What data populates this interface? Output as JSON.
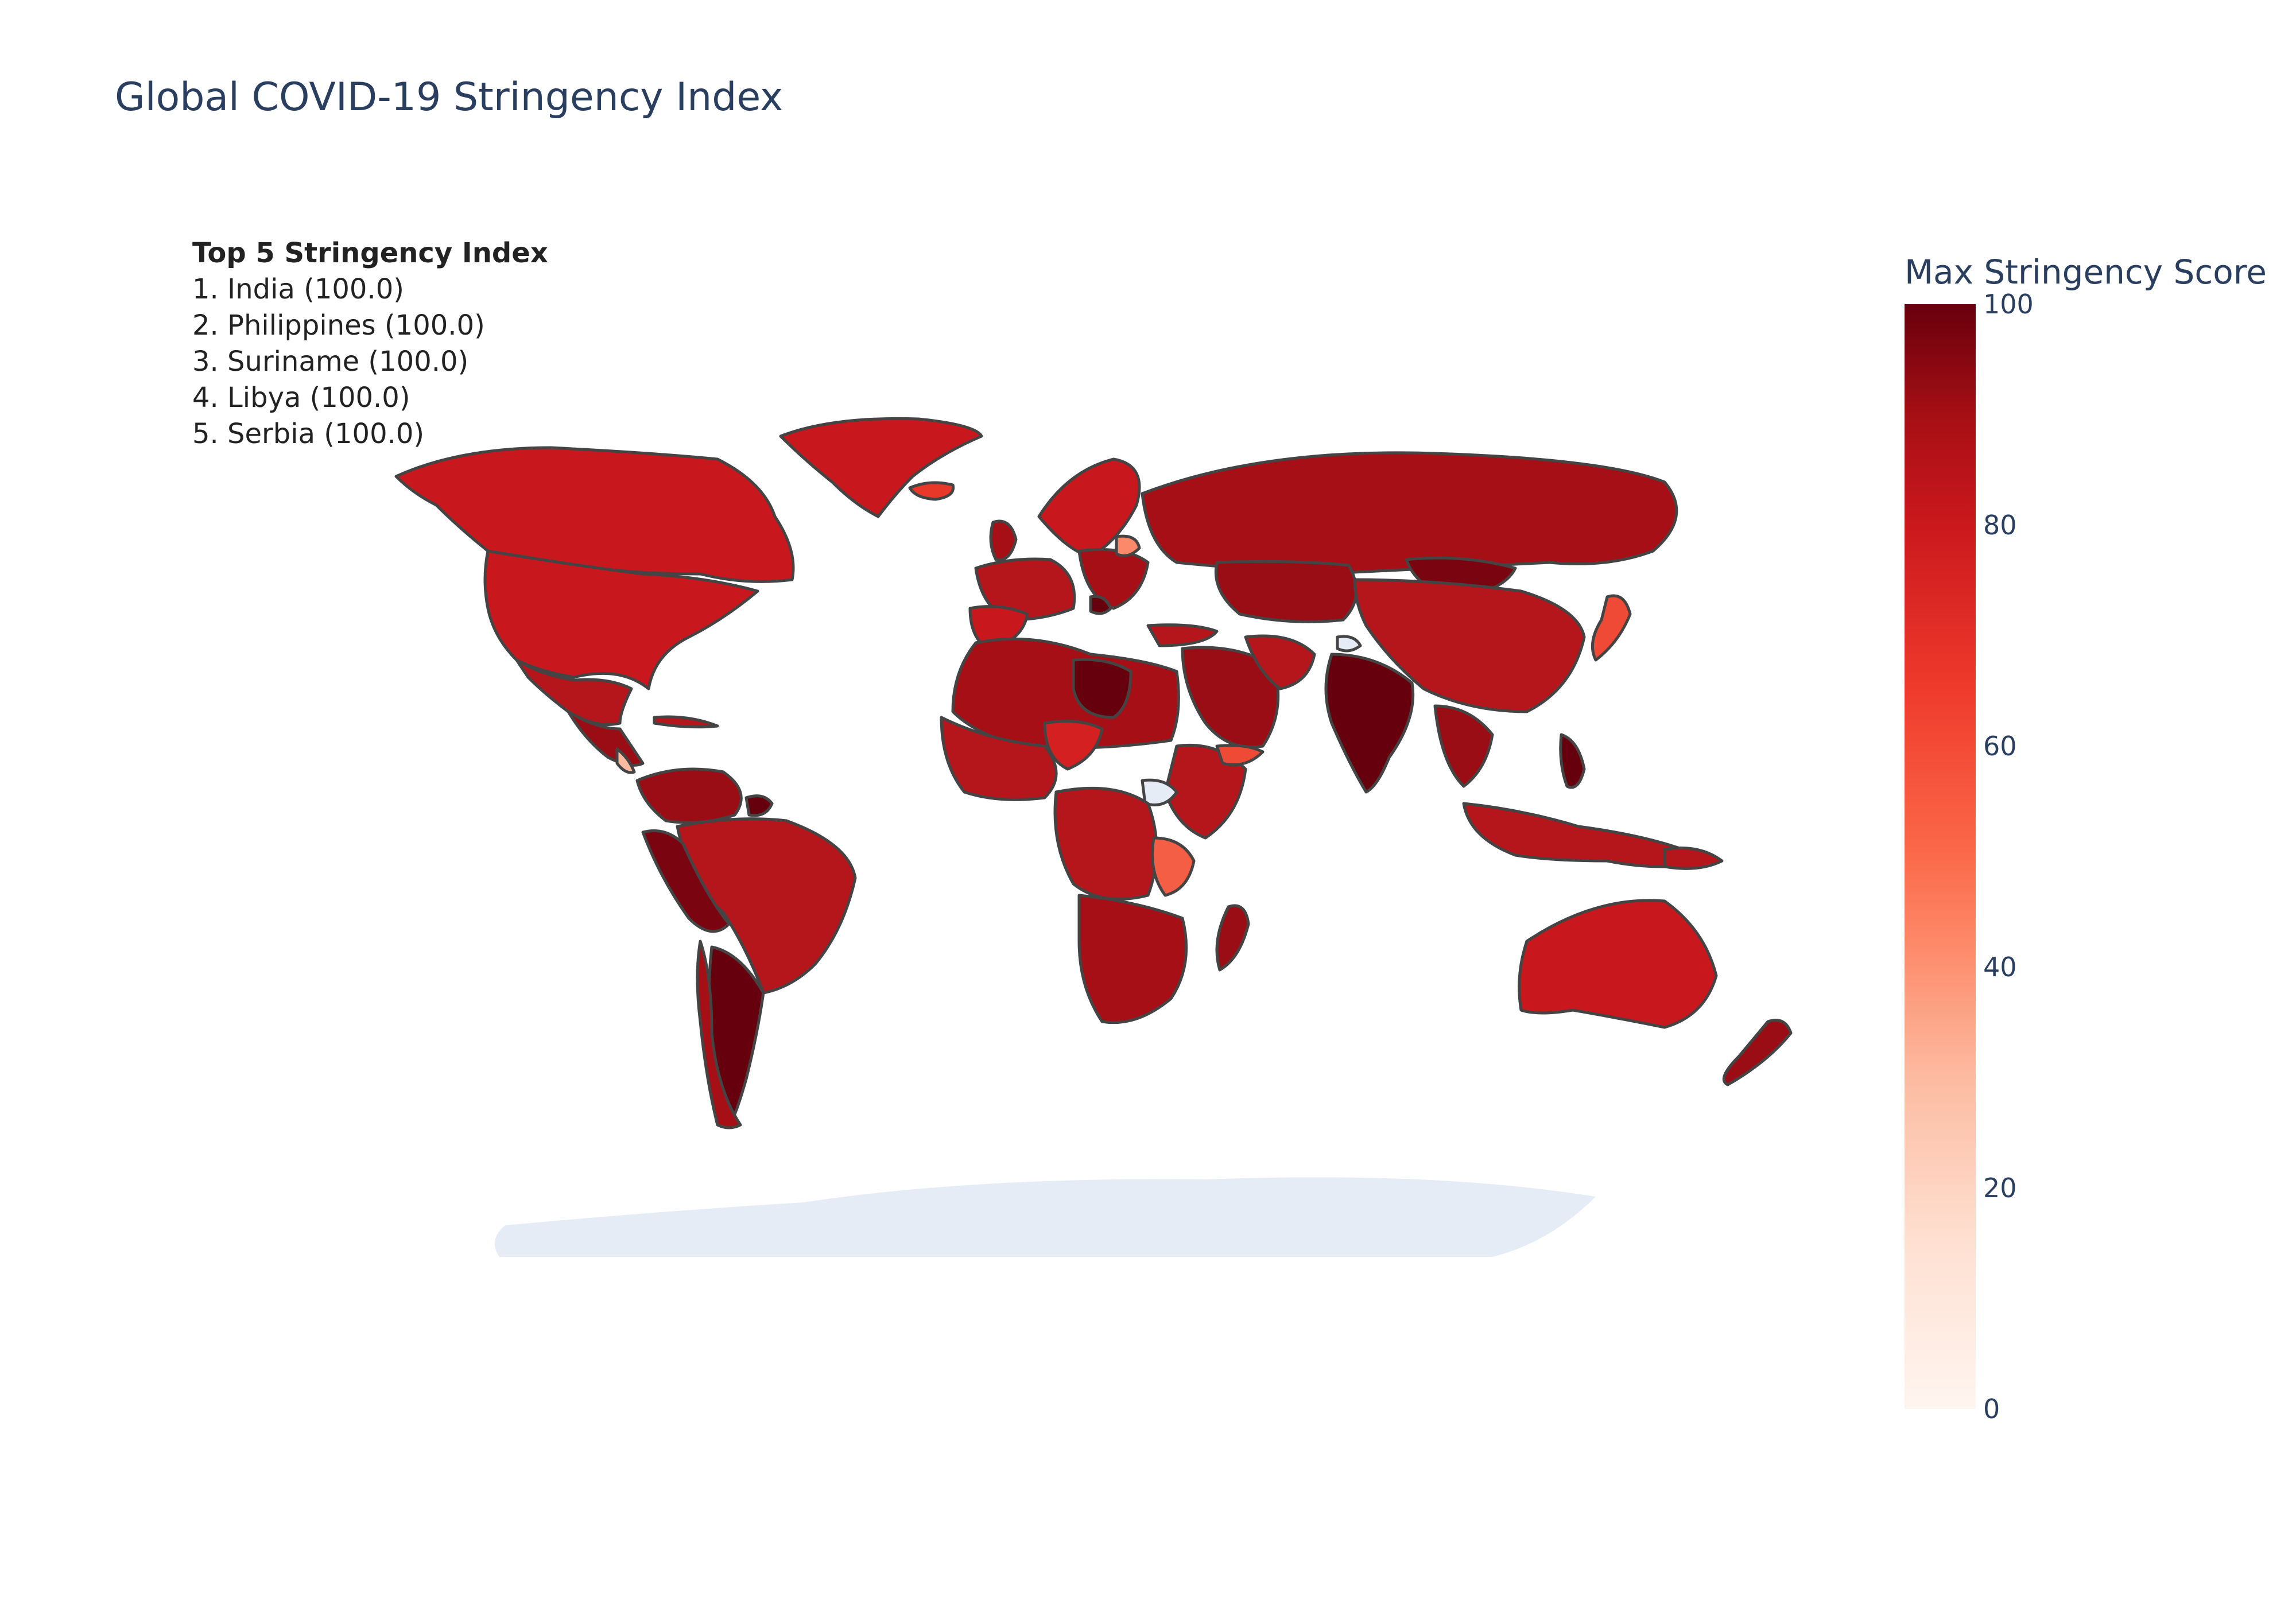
{
  "title": "Global COVID-19 Stringency Index",
  "annotation": {
    "title": "Top 5 Stringency Index",
    "items": [
      "1. India (100.0)",
      "2. Philippines (100.0)",
      "3. Suriname (100.0)",
      "4. Libya (100.0)",
      "5. Serbia (100.0)"
    ]
  },
  "colorbar": {
    "title": "Max Stringency Score",
    "ticks": [
      "0",
      "20",
      "40",
      "60",
      "80",
      "100"
    ],
    "range": [
      0,
      100
    ],
    "colorscale": "Reds"
  },
  "chart_data": {
    "type": "choropleth",
    "projection": "natural earth",
    "colorbar_title": "Max Stringency Score",
    "zrange": [
      0,
      100
    ],
    "highlighted": [
      {
        "name": "India",
        "value": 100.0
      },
      {
        "name": "Philippines",
        "value": 100.0
      },
      {
        "name": "Suriname",
        "value": 100.0
      },
      {
        "name": "Libya",
        "value": 100.0
      },
      {
        "name": "Serbia",
        "value": 100.0
      }
    ],
    "no_data_color": "#e5ecf6"
  }
}
